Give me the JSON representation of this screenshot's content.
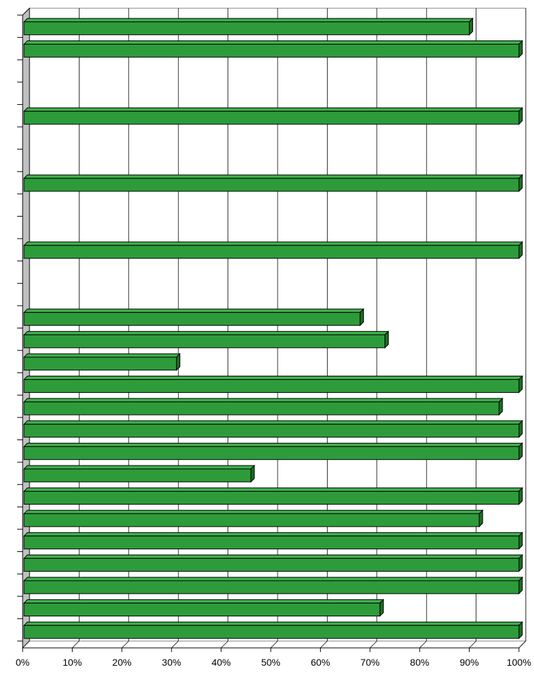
{
  "colors": {
    "bar_front": "#2e9b3b",
    "bar_top": "#3faf4c",
    "bar_side": "#1b6d25",
    "wall": "#c0c0c0",
    "gridline": "#000000"
  },
  "chart_data": {
    "type": "bar",
    "orientation": "horizontal",
    "three_d": true,
    "xlim": [
      0,
      100
    ],
    "x_ticks": [
      0,
      10,
      20,
      30,
      40,
      50,
      60,
      70,
      80,
      90,
      100
    ],
    "x_tick_labels": [
      "0%",
      "10%",
      "20%",
      "30%",
      "40%",
      "50%",
      "60%",
      "70%",
      "80%",
      "90%",
      "100%"
    ],
    "grid": true,
    "legend": "none",
    "category_count": 28,
    "series": [
      {
        "values": [
          90,
          100,
          null,
          null,
          100,
          null,
          null,
          100,
          null,
          null,
          100,
          null,
          null,
          68,
          73,
          31,
          100,
          96,
          100,
          100,
          46,
          100,
          92,
          100,
          100,
          100,
          72,
          100
        ]
      }
    ]
  }
}
